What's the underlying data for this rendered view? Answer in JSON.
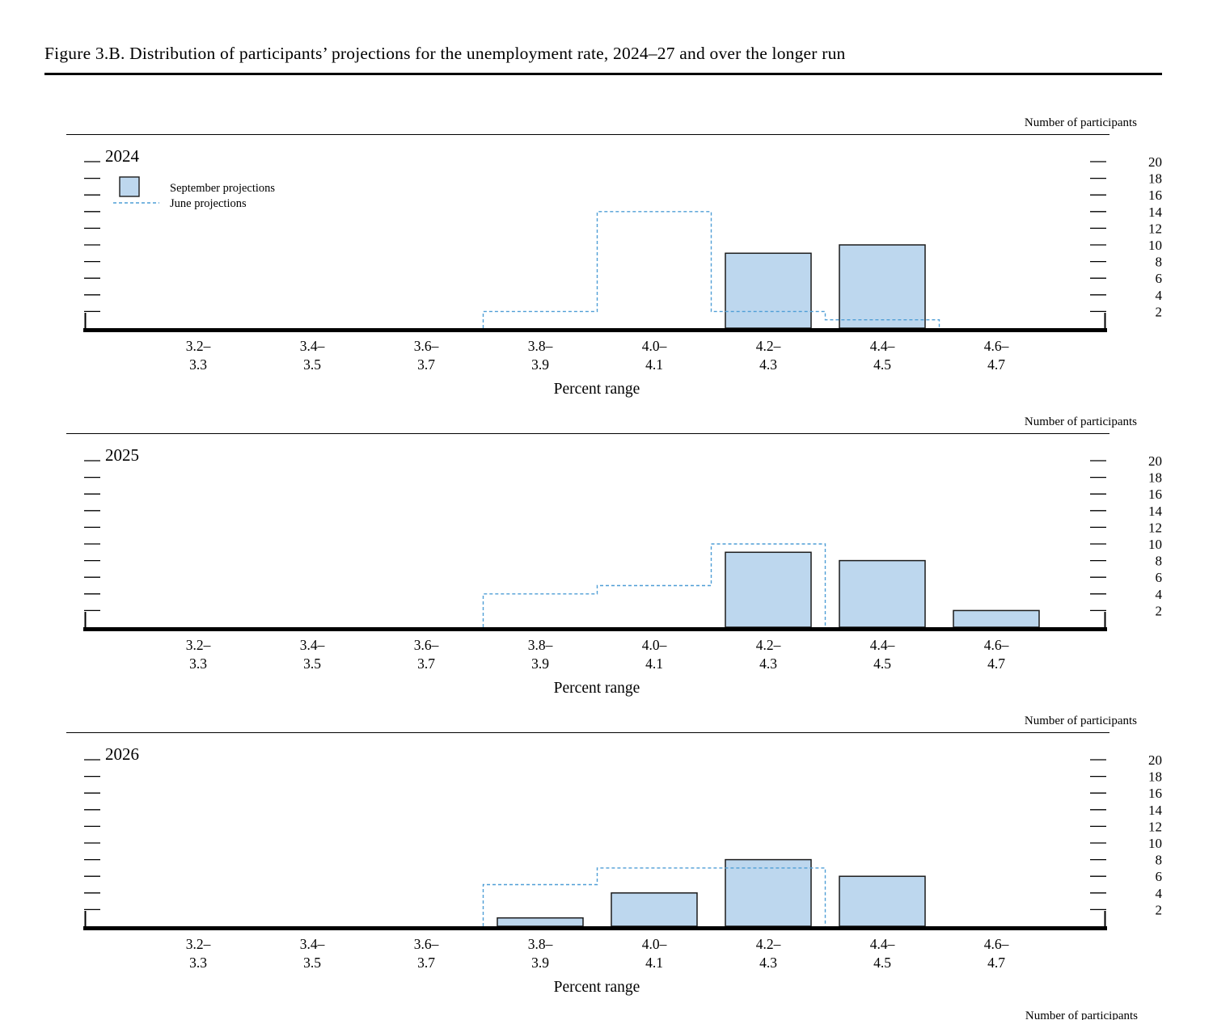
{
  "title": "Figure 3.B. Distribution of participants’ projections for the unemployment rate, 2024–27 and over the longer run",
  "axis": {
    "right_label": "Number of participants",
    "x_label": "Percent range",
    "y_ticks": [
      2,
      4,
      6,
      8,
      10,
      12,
      14,
      16,
      18,
      20
    ],
    "y_limit": [
      0,
      23
    ],
    "categories_line1": [
      "3.2–",
      "3.4–",
      "3.6–",
      "3.8–",
      "4.0–",
      "4.2–",
      "4.4–",
      "4.6–"
    ],
    "categories_line2": [
      "3.3",
      "3.5",
      "3.7",
      "3.9",
      "4.1",
      "4.3",
      "4.5",
      "4.7"
    ]
  },
  "legend": {
    "september": "September projections",
    "june": "June projections"
  },
  "colors": {
    "bar_fill": "#bdd7ee",
    "bar_stroke": "#1c1c1c",
    "june_line": "#4f9ed6",
    "axis": "#000000"
  },
  "chart_data": [
    {
      "type": "bar",
      "title": "2024",
      "xlabel": "Percent range",
      "ylabel": "Number of participants",
      "ylim": [
        0,
        23
      ],
      "grid": false,
      "legend_position": "top-left-inside",
      "categories": [
        "3.2–3.3",
        "3.4–3.5",
        "3.6–3.7",
        "3.8–3.9",
        "4.0–4.1",
        "4.2–4.3",
        "4.4–4.5",
        "4.6–4.7"
      ],
      "series": [
        {
          "name": "September projections",
          "style": "bar",
          "values": [
            0,
            0,
            0,
            0,
            0,
            9,
            10,
            0
          ]
        },
        {
          "name": "June projections",
          "style": "dashed-step",
          "values": [
            0,
            0,
            0,
            2,
            14,
            2,
            1,
            0
          ]
        }
      ]
    },
    {
      "type": "bar",
      "title": "2025",
      "xlabel": "Percent range",
      "ylabel": "Number of participants",
      "ylim": [
        0,
        23
      ],
      "grid": false,
      "categories": [
        "3.2–3.3",
        "3.4–3.5",
        "3.6–3.7",
        "3.8–3.9",
        "4.0–4.1",
        "4.2–4.3",
        "4.4–4.5",
        "4.6–4.7"
      ],
      "series": [
        {
          "name": "September projections",
          "style": "bar",
          "values": [
            0,
            0,
            0,
            0,
            0,
            9,
            8,
            2
          ]
        },
        {
          "name": "June projections",
          "style": "dashed-step",
          "values": [
            0,
            0,
            0,
            4,
            5,
            10,
            0,
            0
          ]
        }
      ]
    },
    {
      "type": "bar",
      "title": "2026",
      "xlabel": "Percent range",
      "ylabel": "Number of participants",
      "ylim": [
        0,
        23
      ],
      "grid": false,
      "categories": [
        "3.2–3.3",
        "3.4–3.5",
        "3.6–3.7",
        "3.8–3.9",
        "4.0–4.1",
        "4.2–4.3",
        "4.4–4.5",
        "4.6–4.7"
      ],
      "series": [
        {
          "name": "September projections",
          "style": "bar",
          "values": [
            0,
            0,
            0,
            1,
            4,
            8,
            6,
            0
          ]
        },
        {
          "name": "June projections",
          "style": "dashed-step",
          "values": [
            0,
            0,
            0,
            5,
            7,
            7,
            0,
            0
          ]
        }
      ]
    }
  ],
  "partial_next_panel": {
    "right_label": "Number of participants"
  }
}
